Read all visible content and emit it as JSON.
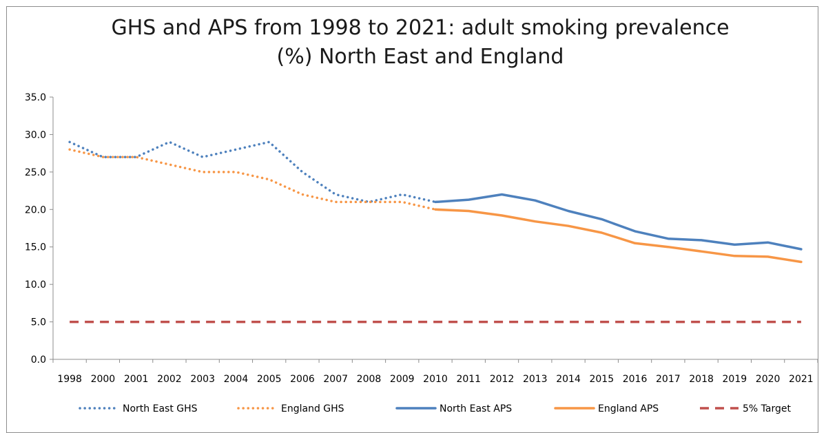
{
  "chart_data": {
    "type": "line",
    "title": "GHS and APS from 1998 to 2021: adult smoking prevalence",
    "title_line2": "(%) North East and England",
    "xlabel": "",
    "ylabel": "",
    "ylim": [
      0,
      35
    ],
    "yticks": [
      "0.0",
      "5.0",
      "10.0",
      "15.0",
      "20.0",
      "25.0",
      "30.0",
      "35.0"
    ],
    "categories": [
      "1998",
      "2000",
      "2001",
      "2002",
      "2003",
      "2004",
      "2005",
      "2006",
      "2007",
      "2008",
      "2009",
      "2010",
      "2011",
      "2012",
      "2013",
      "2014",
      "2015",
      "2016",
      "2017",
      "2018",
      "2019",
      "2020",
      "2021"
    ],
    "grid": false,
    "legend_position": "bottom",
    "series": [
      {
        "name": "North East GHS",
        "color": "#4e81bd",
        "style": "dotted",
        "values": [
          29,
          27,
          27,
          29,
          27,
          28,
          29,
          25,
          22,
          21,
          22,
          21,
          null,
          null,
          null,
          null,
          null,
          null,
          null,
          null,
          null,
          null,
          null
        ]
      },
      {
        "name": "England GHS",
        "color": "#f79646",
        "style": "dotted",
        "values": [
          28,
          27,
          27,
          26,
          25,
          25,
          24,
          22,
          21,
          21,
          21,
          20,
          null,
          null,
          null,
          null,
          null,
          null,
          null,
          null,
          null,
          null,
          null
        ]
      },
      {
        "name": "North East APS",
        "color": "#4e81bd",
        "style": "solid",
        "values": [
          null,
          null,
          null,
          null,
          null,
          null,
          null,
          null,
          null,
          null,
          null,
          21.0,
          21.3,
          22.0,
          21.2,
          19.8,
          18.7,
          17.1,
          16.1,
          15.9,
          15.3,
          15.6,
          14.7
        ]
      },
      {
        "name": "England APS",
        "color": "#f79646",
        "style": "solid",
        "values": [
          null,
          null,
          null,
          null,
          null,
          null,
          null,
          null,
          null,
          null,
          null,
          20.0,
          19.8,
          19.2,
          18.4,
          17.8,
          16.9,
          15.5,
          15.0,
          14.4,
          13.8,
          13.7,
          13.0
        ]
      },
      {
        "name": "5% Target",
        "color": "#c0504d",
        "style": "dashed",
        "values": [
          5,
          5,
          5,
          5,
          5,
          5,
          5,
          5,
          5,
          5,
          5,
          5,
          5,
          5,
          5,
          5,
          5,
          5,
          5,
          5,
          5,
          5,
          5
        ]
      }
    ]
  }
}
